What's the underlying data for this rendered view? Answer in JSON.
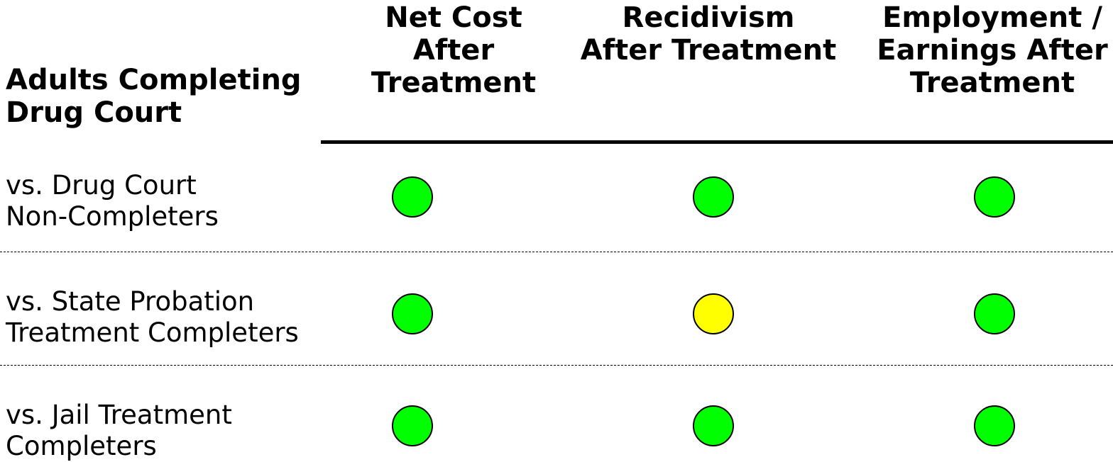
{
  "corner_heading": [
    "Adults Completing",
    "Drug Court"
  ],
  "columns": [
    {
      "lines": [
        "Net Cost",
        "After",
        "Treatment"
      ]
    },
    {
      "lines": [
        "Recidivism",
        "After Treatment"
      ]
    },
    {
      "lines": [
        "Employment /",
        "Earnings After",
        "Treatment"
      ]
    }
  ],
  "rows": [
    {
      "lines": [
        "vs. Drug Court",
        "Non-Completers"
      ],
      "ratings": [
        "green",
        "green",
        "green"
      ]
    },
    {
      "lines": [
        "vs. State Probation",
        "Treatment Completers"
      ],
      "ratings": [
        "green",
        "yellow",
        "green"
      ]
    },
    {
      "lines": [
        "vs. Jail Treatment",
        "Completers"
      ],
      "ratings": [
        "green",
        "green",
        "green"
      ]
    }
  ],
  "colors": {
    "green": "#00ff00",
    "yellow": "#ffff00",
    "rule": "#000000"
  }
}
